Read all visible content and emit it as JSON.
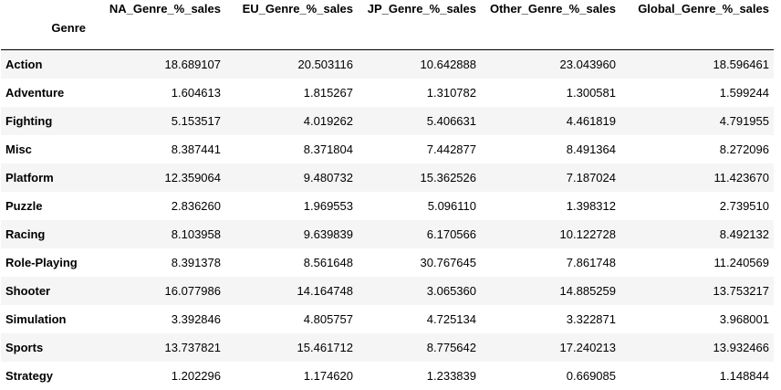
{
  "table": {
    "columns": [
      "NA_Genre_%_sales",
      "EU_Genre_%_sales",
      "JP_Genre_%_sales",
      "Other_Genre_%_sales",
      "Global_Genre_%_sales"
    ],
    "index_name": "Genre",
    "rows": [
      {
        "label": "Action",
        "values": [
          "18.689107",
          "20.503116",
          "10.642888",
          "23.043960",
          "18.596461"
        ]
      },
      {
        "label": "Adventure",
        "values": [
          "1.604613",
          "1.815267",
          "1.310782",
          "1.300581",
          "1.599244"
        ]
      },
      {
        "label": "Fighting",
        "values": [
          "5.153517",
          "4.019262",
          "5.406631",
          "4.461819",
          "4.791955"
        ]
      },
      {
        "label": "Misc",
        "values": [
          "8.387441",
          "8.371804",
          "7.442877",
          "8.491364",
          "8.272096"
        ]
      },
      {
        "label": "Platform",
        "values": [
          "12.359064",
          "9.480732",
          "15.362526",
          "7.187024",
          "11.423670"
        ]
      },
      {
        "label": "Puzzle",
        "values": [
          "2.836260",
          "1.969553",
          "5.096110",
          "1.398312",
          "2.739510"
        ]
      },
      {
        "label": "Racing",
        "values": [
          "8.103958",
          "9.639839",
          "6.170566",
          "10.122728",
          "8.492132"
        ]
      },
      {
        "label": "Role-Playing",
        "values": [
          "8.391378",
          "8.561648",
          "30.767645",
          "7.861748",
          "11.240569"
        ]
      },
      {
        "label": "Shooter",
        "values": [
          "16.077986",
          "14.164748",
          "3.065360",
          "14.885259",
          "13.753217"
        ]
      },
      {
        "label": "Simulation",
        "values": [
          "3.392846",
          "4.805757",
          "4.725134",
          "3.322871",
          "3.968001"
        ]
      },
      {
        "label": "Sports",
        "values": [
          "13.737821",
          "15.461712",
          "8.775642",
          "17.240213",
          "13.932466"
        ]
      },
      {
        "label": "Strategy",
        "values": [
          "1.202296",
          "1.174620",
          "1.233839",
          "0.669085",
          "1.148844"
        ]
      }
    ]
  }
}
